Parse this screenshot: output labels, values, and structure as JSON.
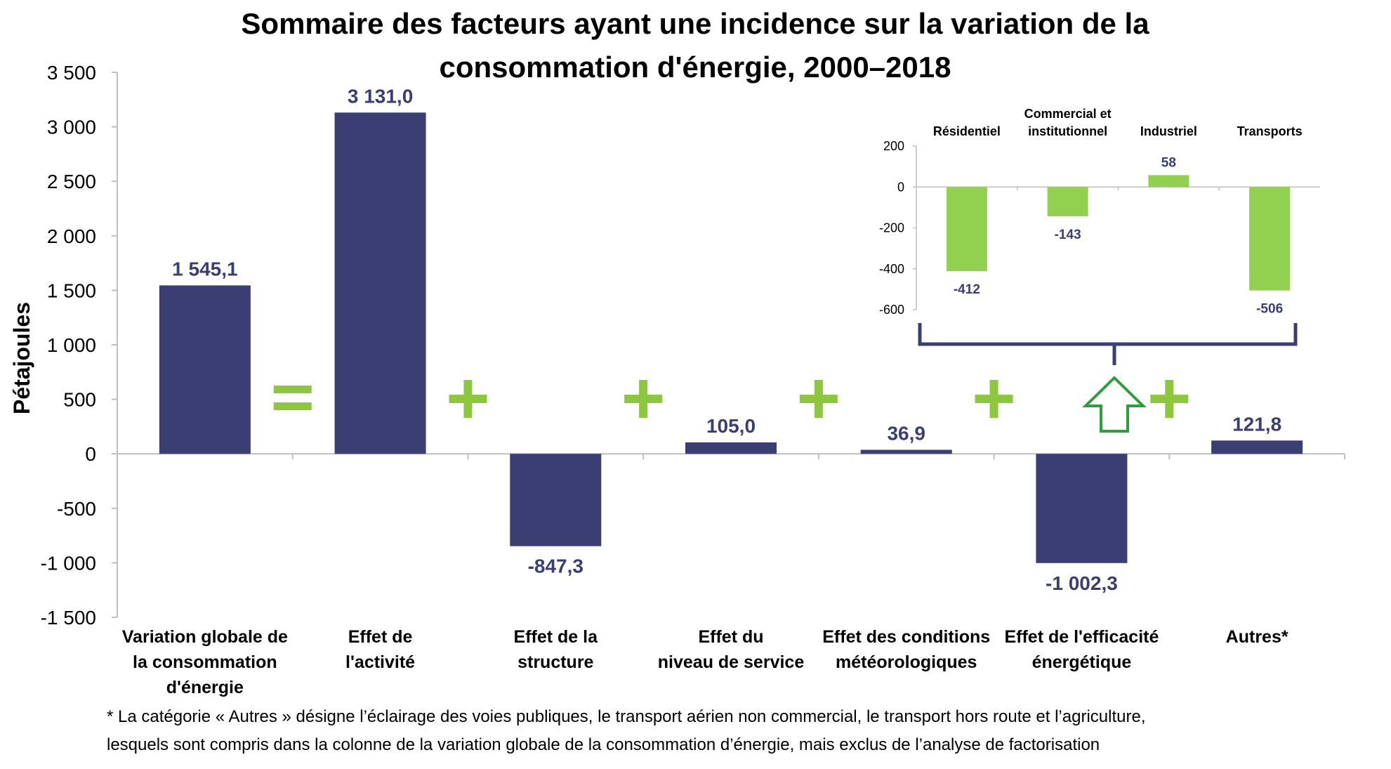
{
  "chart_data": [
    {
      "type": "bar",
      "title_lines": [
        "Sommaire des facteurs ayant une incidence sur la variation de la",
        "consommation d'énergie, 2000–2018"
      ],
      "ylabel": "Pétajoules",
      "ylim": [
        -1500,
        3500
      ],
      "yticks": [
        3500,
        3000,
        2500,
        2000,
        1500,
        1000,
        500,
        0,
        -500,
        -1000,
        -1500
      ],
      "ytick_labels": [
        "3 500",
        "3 000",
        "2 500",
        "2 000",
        "1 500",
        "1 000",
        "500",
        "0",
        "-500",
        "-1 000",
        "-1 500"
      ],
      "categories": [
        [
          "Variation globale de",
          "la consommation",
          "d'énergie"
        ],
        [
          "Effet de",
          "l'activité"
        ],
        [
          "Effet de la",
          "structure"
        ],
        [
          "Effet du",
          "niveau de service"
        ],
        [
          "Effet des conditions",
          "météorologiques"
        ],
        [
          "Effet de l'efficacité",
          "énergétique"
        ],
        [
          "Autres*"
        ]
      ],
      "values": [
        1545.1,
        3131.0,
        -847.3,
        105.0,
        36.9,
        -1002.3,
        121.8
      ],
      "data_labels": [
        "1 545,1",
        "3 131,0",
        "-847,3",
        "105,0",
        "36,9",
        "-1 002,3",
        "121,8"
      ],
      "operators": [
        "=",
        "+",
        "+",
        "+",
        "+",
        "+"
      ],
      "grid": false,
      "bar_color": "#3B3E72",
      "operator_color": "#8DC63F"
    },
    {
      "type": "bar",
      "categories": [
        [
          "Résidentiel"
        ],
        [
          "Commercial et",
          "institutionnel"
        ],
        [
          "Industriel"
        ],
        [
          "Transports"
        ]
      ],
      "values": [
        -412,
        -143,
        58,
        -506
      ],
      "data_labels": [
        "-412",
        "-143",
        "58",
        "-506"
      ],
      "ylim": [
        -600,
        200
      ],
      "yticks": [
        200,
        0,
        -200,
        -400,
        -600
      ],
      "ytick_labels": [
        "200",
        "0",
        "-200",
        "-400",
        "-600"
      ],
      "grid": false,
      "bar_color": "#92D050"
    }
  ],
  "footnote": [
    "* La catégorie « Autres » désigne l’éclairage des voies publiques, le transport aérien non commercial, le transport hors route et l’agriculture,",
    "lesquels sont compris dans la colonne de la variation globale de la consommation d’énergie, mais exclus de l’analyse de factorisation"
  ],
  "colors": {
    "main_bar": "#3B3E72",
    "inset_bar": "#92D050",
    "operator": "#8DC63F",
    "label": "#3B3E72",
    "axis": "#BFBFBF"
  }
}
